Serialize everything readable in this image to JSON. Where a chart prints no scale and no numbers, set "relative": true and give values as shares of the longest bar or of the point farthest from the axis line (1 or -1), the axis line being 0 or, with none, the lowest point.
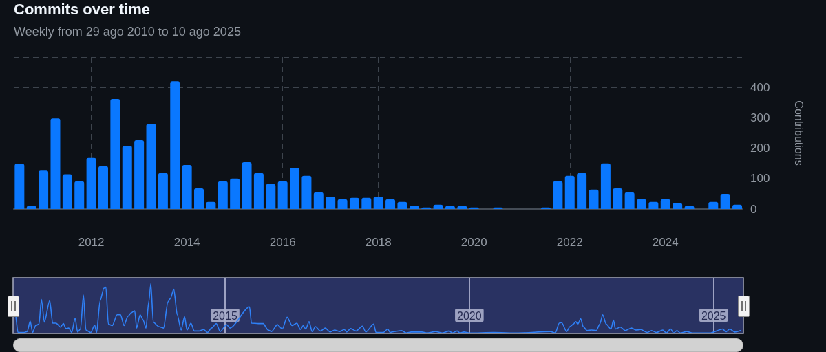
{
  "chart_data": [
    {
      "type": "bar",
      "title": "Commits over time",
      "subtitle": "Weekly from 29 ago 2010 to 10 ago 2025",
      "ylabel": "Contributions",
      "color": "#0a78ff",
      "x": [
        2010.5,
        2010.75,
        2011,
        2011.25,
        2011.5,
        2011.75,
        2012,
        2012.25,
        2012.5,
        2012.75,
        2013,
        2013.25,
        2013.5,
        2013.75,
        2014,
        2014.25,
        2014.5,
        2014.75,
        2015,
        2015.25,
        2015.5,
        2015.75,
        2016,
        2016.25,
        2016.5,
        2016.75,
        2017,
        2017.25,
        2017.5,
        2017.75,
        2018,
        2018.25,
        2018.5,
        2018.75,
        2019,
        2019.25,
        2019.5,
        2019.75,
        2020,
        2020.25,
        2020.5,
        2020.75,
        2021,
        2021.25,
        2021.5,
        2021.75,
        2022,
        2022.25,
        2022.5,
        2022.75,
        2023,
        2023.25,
        2023.5,
        2023.75,
        2024,
        2024.25,
        2024.5,
        2024.75,
        2025,
        2025.25,
        2025.5
      ],
      "values": [
        149,
        10,
        126,
        298,
        114,
        91,
        168,
        141,
        362,
        208,
        226,
        280,
        118,
        420,
        145,
        68,
        23,
        91,
        100,
        154,
        118,
        82,
        91,
        136,
        109,
        55,
        41,
        32,
        37,
        37,
        41,
        32,
        23,
        10,
        5,
        14,
        10,
        10,
        5,
        0,
        5,
        0,
        0,
        0,
        5,
        91,
        109,
        118,
        64,
        150,
        68,
        55,
        32,
        23,
        32,
        19,
        10,
        0,
        23,
        50,
        14
      ],
      "xlim": [
        2010.38,
        2025.6
      ],
      "xticks": [
        2012,
        2014,
        2016,
        2018,
        2020,
        2022,
        2024
      ],
      "ylim": [
        0,
        500
      ],
      "yticks": [
        0,
        100,
        200,
        300,
        400,
        {
          "value": 500,
          "label": null
        }
      ],
      "grid": true
    },
    {
      "type": "line",
      "relative": true,
      "color": "#2f81f7",
      "x": [
        2010.72,
        2010.76,
        2010.89,
        2010.95,
        2011.01,
        2011.06,
        2011.12,
        2011.19,
        2011.24,
        2011.3,
        2011.41,
        2011.47,
        2011.54,
        2011.63,
        2011.69,
        2011.74,
        2011.8,
        2011.86,
        2011.93,
        2011.98,
        2012.04,
        2012.1,
        2012.15,
        2012.25,
        2012.33,
        2012.37,
        2012.44,
        2012.52,
        2012.56,
        2012.61,
        2012.69,
        2012.79,
        2012.86,
        2012.93,
        2013.01,
        2013.08,
        2013.15,
        2013.19,
        2013.26,
        2013.32,
        2013.38,
        2013.44,
        2013.48,
        2013.53,
        2013.64,
        2013.74,
        2013.83,
        2013.88,
        2013.95,
        2014.02,
        2014.1,
        2014.17,
        2014.22,
        2014.3,
        2014.37,
        2014.47,
        2014.56,
        2014.64,
        2014.72,
        2014.82,
        2014.9,
        2015.03,
        2015.1,
        2015.5,
        2015.54,
        2015.68,
        2015.78,
        2015.88,
        2015.95,
        2016.07,
        2016.17,
        2016.27,
        2016.37,
        2016.47,
        2016.54,
        2016.6,
        2016.65,
        2016.72,
        2016.78,
        2016.85,
        2016.95,
        2017.05,
        2017.15,
        2017.24,
        2017.34,
        2017.44,
        2017.49,
        2017.57,
        2017.68,
        2017.81,
        2017.88,
        2018.04,
        2018.09,
        2018.24,
        2018.33,
        2018.38,
        2018.46,
        2018.61,
        2018.71,
        2018.81,
        2019.03,
        2019.13,
        2019.31,
        2019.45,
        2019.59,
        2019.65,
        2019.75,
        2019.81,
        2019.89,
        2020.0,
        2020.5,
        2021.0,
        2021.66,
        2021.76,
        2021.84,
        2021.89,
        2021.99,
        2022.06,
        2022.13,
        2022.18,
        2022.22,
        2022.28,
        2022.33,
        2022.41,
        2022.5,
        2022.6,
        2022.67,
        2022.73,
        2022.8,
        2022.9,
        2022.95,
        2022.99,
        2023.09,
        2023.19,
        2023.32,
        2023.41,
        2023.51,
        2023.64,
        2023.73,
        2023.83,
        2023.96,
        2024.03,
        2024.12,
        2024.18,
        2024.25,
        2024.32,
        2024.45,
        2024.57,
        2024.92,
        2025.19,
        2025.25,
        2025.33,
        2025.43,
        2025.55
      ],
      "values": [
        0.32,
        0.01,
        0.01,
        0.03,
        0.24,
        0.01,
        0.15,
        0.18,
        0.68,
        0.22,
        0.66,
        0.2,
        0.2,
        0.12,
        0.19,
        0.09,
        0.1,
        0.01,
        0.3,
        0.02,
        0.08,
        0.77,
        0.06,
        0.01,
        0.16,
        0.01,
        0.65,
        0.91,
        0.93,
        0.18,
        0.15,
        0.37,
        0.37,
        0.15,
        0.34,
        0.41,
        0.45,
        0.1,
        0.37,
        0.27,
        0.1,
        0.65,
        1,
        0.22,
        0.13,
        0.1,
        0.63,
        0.7,
        0.89,
        0.37,
        0.06,
        0.33,
        0.06,
        0.2,
        0.04,
        0.04,
        0.07,
        0.01,
        0.1,
        0.19,
        0.03,
        0.17,
        0.1,
        0.53,
        0.2,
        0.19,
        0.19,
        0.06,
        0.03,
        0.17,
        0.08,
        0.32,
        0.15,
        0.2,
        0.07,
        0.15,
        0.08,
        0.23,
        0.03,
        0.13,
        0.04,
        0.1,
        0.02,
        0.06,
        0.03,
        0.07,
        0.02,
        0.09,
        0.04,
        0.14,
        0.02,
        0.18,
        0.01,
        0.01,
        0.08,
        0.01,
        0.03,
        0.05,
        0,
        0.02,
        0.02,
        0,
        0.03,
        0,
        0.04,
        0,
        0.04,
        0,
        0.02,
        0,
        0.01,
        0,
        0.03,
        0,
        0.2,
        0.21,
        0.03,
        0.13,
        0.18,
        0.23,
        0.18,
        0.29,
        0.13,
        0.05,
        0.06,
        0.05,
        0.18,
        0.37,
        0.18,
        0.08,
        0.26,
        0.08,
        0.12,
        0.05,
        0.1,
        0.06,
        0.07,
        0.01,
        0.05,
        0.01,
        0.06,
        0,
        0.08,
        0,
        0.05,
        0,
        0.03,
        0,
        0,
        0.08,
        0.02,
        0.08,
        0.02,
        0.05
      ],
      "xlim": [
        2010.66,
        2025.61
      ],
      "xticks": [
        2015,
        2020,
        2025
      ],
      "grid": "x",
      "tick_labels": "x"
    }
  ]
}
